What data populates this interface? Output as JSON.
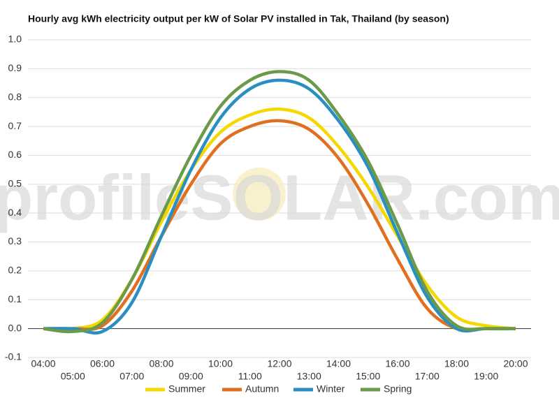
{
  "chart_data": {
    "type": "line",
    "title": "Hourly avg kWh electricity output per kW of Solar PV installed in Tak, Thailand (by season)",
    "watermark": "profileSOLAR.com",
    "categories": [
      "04:00",
      "05:00",
      "06:00",
      "07:00",
      "08:00",
      "09:00",
      "10:00",
      "11:00",
      "12:00",
      "13:00",
      "14:00",
      "15:00",
      "16:00",
      "17:00",
      "18:00",
      "19:00",
      "20:00"
    ],
    "series": [
      {
        "name": "Summer",
        "color": "#f5d800",
        "values": [
          0,
          0,
          0.03,
          0.17,
          0.37,
          0.55,
          0.68,
          0.74,
          0.76,
          0.73,
          0.63,
          0.49,
          0.32,
          0.15,
          0.04,
          0.01,
          0
        ]
      },
      {
        "name": "Autumn",
        "color": "#e07020",
        "values": [
          0,
          0,
          0.01,
          0.13,
          0.32,
          0.5,
          0.64,
          0.7,
          0.72,
          0.69,
          0.59,
          0.43,
          0.24,
          0.07,
          0,
          0,
          0
        ]
      },
      {
        "name": "Winter",
        "color": "#2a8fc0",
        "values": [
          0,
          0,
          -0.01,
          0.09,
          0.32,
          0.55,
          0.73,
          0.83,
          0.86,
          0.83,
          0.72,
          0.56,
          0.33,
          0.11,
          0,
          0,
          0
        ]
      },
      {
        "name": "Spring",
        "color": "#6a9a4a",
        "values": [
          0,
          -0.01,
          0.02,
          0.17,
          0.39,
          0.6,
          0.77,
          0.86,
          0.89,
          0.86,
          0.74,
          0.58,
          0.36,
          0.13,
          0.01,
          0,
          0
        ]
      }
    ],
    "ylim": [
      -0.1,
      1
    ],
    "yticks": [
      -0.1,
      {
        "value": 0,
        "label": "0.0"
      },
      0.1,
      0.2,
      0.3,
      0.4,
      0.5,
      0.6,
      0.7,
      0.8,
      0.9,
      {
        "value": 1,
        "label": "1.0"
      }
    ],
    "grid": true,
    "legend": "bottom"
  }
}
